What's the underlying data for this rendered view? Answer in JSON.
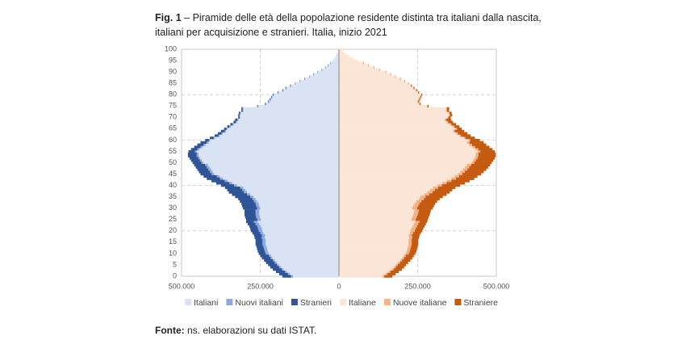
{
  "chart_data": {
    "type": "pyramid",
    "title_label": "Fig. 1",
    "title": "– Piramide delle età della popolazione residente distinta tra italiani dalla nascita, italiani per acquisizione e stranieri. Italia, inizio 2021",
    "source_label": "Fonte:",
    "source": "ns. elaborazioni su dati ISTAT.",
    "y": [
      0,
      1,
      2,
      3,
      4,
      5,
      6,
      7,
      8,
      9,
      10,
      11,
      12,
      13,
      14,
      15,
      16,
      17,
      18,
      19,
      20,
      21,
      22,
      23,
      24,
      25,
      26,
      27,
      28,
      29,
      30,
      31,
      32,
      33,
      34,
      35,
      36,
      37,
      38,
      39,
      40,
      41,
      42,
      43,
      44,
      45,
      46,
      47,
      48,
      49,
      50,
      51,
      52,
      53,
      54,
      55,
      56,
      57,
      58,
      59,
      60,
      61,
      62,
      63,
      64,
      65,
      66,
      67,
      68,
      69,
      70,
      71,
      72,
      73,
      74,
      75,
      76,
      77,
      78,
      79,
      80,
      81,
      82,
      83,
      84,
      85,
      86,
      87,
      88,
      89,
      90,
      91,
      92,
      93,
      94,
      95,
      96,
      97,
      98,
      99,
      100
    ],
    "ylim": [
      0,
      100
    ],
    "yticks": [
      0,
      5,
      10,
      15,
      20,
      25,
      30,
      35,
      40,
      45,
      50,
      55,
      60,
      65,
      70,
      75,
      80,
      85,
      90,
      95,
      100
    ],
    "left_xlim": [
      0,
      500000
    ],
    "right_xlim": [
      0,
      500000
    ],
    "left_xticks": [
      {
        "value": 500000,
        "label": "500.000"
      },
      {
        "value": 250000,
        "label": "250.000"
      },
      0
    ],
    "right_xticks": [
      {
        "value": 250000,
        "label": "250.000"
      },
      {
        "value": 500000,
        "label": "500.000"
      }
    ],
    "grid": true,
    "legend": "bottom",
    "series": [
      {
        "name": "Italiani",
        "side": "left",
        "color": "#dae3f3",
        "values": [
          146000,
          156000,
          166000,
          176000,
          184000,
          191000,
          198000,
          204000,
          211000,
          216000,
          223000,
          226000,
          228000,
          230000,
          233000,
          233000,
          233000,
          236000,
          235000,
          240000,
          243000,
          245000,
          248000,
          253000,
          258000,
          248000,
          251000,
          253000,
          253000,
          253000,
          250000,
          253000,
          255000,
          260000,
          265000,
          272000,
          282000,
          292000,
          297000,
          304000,
          324000,
          339000,
          354000,
          369000,
          379000,
          396000,
          401000,
          406000,
          411000,
          416000,
          431000,
          436000,
          441000,
          446000,
          446000,
          452000,
          444000,
          434000,
          424000,
          414000,
          409000,
          394000,
          379000,
          369000,
          359000,
          354000,
          344000,
          334000,
          324000,
          319000,
          314000,
          314000,
          312000,
          304000,
          304000,
          256000,
          231000,
          221000,
          216000,
          211000,
          207000,
          192000,
          177000,
          167000,
          152000,
          138000,
          123000,
          108000,
          93000,
          80000,
          66000,
          53000,
          42000,
          33000,
          25000,
          20000,
          14000,
          10000,
          7000,
          4000,
          2000
        ]
      },
      {
        "name": "Nuovi italiani",
        "side": "left",
        "color": "#8faadc",
        "values": [
          6000,
          6000,
          6000,
          6000,
          6000,
          6000,
          6000,
          6000,
          6000,
          6000,
          10000,
          10000,
          10000,
          10000,
          10000,
          10000,
          10000,
          10000,
          10000,
          10000,
          12000,
          12000,
          12000,
          12000,
          12000,
          12000,
          12000,
          12000,
          12000,
          12000,
          10000,
          10000,
          10000,
          10000,
          10000,
          10000,
          10000,
          10000,
          10000,
          10000,
          9000,
          9000,
          9000,
          9000,
          9000,
          9000,
          9000,
          9000,
          9000,
          9000,
          6000,
          6000,
          6000,
          6000,
          6000,
          6000,
          6000,
          6000,
          6000,
          6000,
          4000,
          4000,
          4000,
          4000,
          4000,
          4000,
          4000,
          4000,
          4000,
          4000,
          2000,
          2000,
          2000,
          2000,
          2000,
          2000,
          2000,
          2000,
          2000,
          2000,
          1000,
          1000,
          1000,
          1000,
          1000,
          1000,
          1000,
          1000,
          1000,
          1000,
          1000,
          1000,
          1000,
          1000,
          1000,
          0,
          0,
          0,
          0,
          0,
          0
        ]
      },
      {
        "name": "Stranieri",
        "side": "left",
        "color": "#2f5597",
        "values": [
          28000,
          28000,
          28000,
          28000,
          28000,
          28000,
          28000,
          28000,
          28000,
          28000,
          22000,
          22000,
          22000,
          22000,
          22000,
          22000,
          22000,
          22000,
          25000,
          25000,
          25000,
          25000,
          25000,
          25000,
          25000,
          35000,
          35000,
          35000,
          35000,
          35000,
          45000,
          45000,
          45000,
          45000,
          45000,
          48000,
          48000,
          48000,
          48000,
          48000,
          42000,
          42000,
          42000,
          42000,
          42000,
          35000,
          35000,
          35000,
          35000,
          35000,
          28000,
          28000,
          28000,
          28000,
          28000,
          20000,
          20000,
          20000,
          20000,
          20000,
          12000,
          12000,
          12000,
          12000,
          12000,
          7000,
          7000,
          7000,
          7000,
          7000,
          4000,
          4000,
          4000,
          4000,
          4000,
          2000,
          2000,
          2000,
          2000,
          2000,
          2000,
          2000,
          2000,
          2000,
          2000,
          1000,
          1000,
          1000,
          1000,
          1000,
          1000,
          1000,
          1000,
          1000,
          1000,
          0,
          0,
          0,
          0,
          0,
          0
        ]
      },
      {
        "name": "Italiane",
        "side": "right",
        "color": "#fbe5d6",
        "values": [
          138000,
          148000,
          158000,
          168000,
          175000,
          181000,
          188000,
          195000,
          201000,
          206000,
          212000,
          215000,
          217000,
          219000,
          221000,
          221000,
          221000,
          223000,
          222000,
          226000,
          227000,
          230000,
          234000,
          238000,
          242000,
          230000,
          233000,
          236000,
          238000,
          240000,
          232000,
          236000,
          240000,
          246000,
          254000,
          259000,
          271000,
          281000,
          289000,
          299000,
          313000,
          328000,
          343000,
          358000,
          368000,
          378000,
          386000,
          394000,
          400000,
          406000,
          421000,
          426000,
          431000,
          434000,
          434000,
          441000,
          434000,
          424000,
          414000,
          406000,
          413000,
          397000,
          383000,
          373000,
          363000,
          370000,
          362000,
          352000,
          342000,
          336000,
          345000,
          350000,
          348000,
          340000,
          340000,
          279000,
          254000,
          249000,
          252000,
          256000,
          261000,
          251000,
          244000,
          236000,
          228000,
          220000,
          208000,
          194000,
          178000,
          163000,
          148000,
          128000,
          110000,
          93000,
          76000,
          60000,
          45000,
          32000,
          22000,
          14000,
          8000
        ]
      },
      {
        "name": "Nuove italiane",
        "side": "right",
        "color": "#f4b183",
        "values": [
          6000,
          6000,
          6000,
          6000,
          6000,
          6000,
          6000,
          6000,
          6000,
          6000,
          10000,
          10000,
          10000,
          10000,
          10000,
          10000,
          10000,
          10000,
          10000,
          10000,
          14000,
          14000,
          14000,
          14000,
          14000,
          14000,
          14000,
          14000,
          14000,
          14000,
          16000,
          16000,
          16000,
          16000,
          16000,
          16000,
          16000,
          16000,
          16000,
          16000,
          14000,
          14000,
          14000,
          14000,
          14000,
          14000,
          14000,
          14000,
          14000,
          14000,
          9000,
          9000,
          9000,
          9000,
          9000,
          9000,
          9000,
          9000,
          9000,
          9000,
          5000,
          5000,
          5000,
          5000,
          5000,
          5000,
          5000,
          5000,
          5000,
          5000,
          3000,
          3000,
          3000,
          3000,
          3000,
          3000,
          3000,
          3000,
          3000,
          3000,
          1000,
          1000,
          1000,
          1000,
          1000,
          1000,
          1000,
          1000,
          1000,
          1000,
          1000,
          1000,
          1000,
          1000,
          1000,
          0,
          0,
          0,
          0,
          0,
          0
        ]
      },
      {
        "name": "Straniere",
        "side": "right",
        "color": "#c55a11",
        "values": [
          26000,
          26000,
          26000,
          26000,
          26000,
          26000,
          26000,
          26000,
          26000,
          26000,
          21000,
          21000,
          21000,
          21000,
          21000,
          21000,
          21000,
          21000,
          24000,
          24000,
          24000,
          24000,
          24000,
          24000,
          24000,
          38000,
          38000,
          38000,
          38000,
          38000,
          50000,
          50000,
          50000,
          50000,
          50000,
          55000,
          55000,
          55000,
          55000,
          55000,
          58000,
          58000,
          58000,
          58000,
          58000,
          60000,
          60000,
          60000,
          60000,
          60000,
          55000,
          55000,
          55000,
          55000,
          55000,
          45000,
          45000,
          45000,
          45000,
          45000,
          30000,
          30000,
          30000,
          30000,
          30000,
          15000,
          15000,
          15000,
          15000,
          15000,
          7000,
          7000,
          7000,
          7000,
          7000,
          3000,
          3000,
          3000,
          3000,
          3000,
          3000,
          3000,
          3000,
          3000,
          3000,
          1000,
          1000,
          1000,
          1000,
          1000,
          1000,
          1000,
          1000,
          1000,
          1000,
          0,
          0,
          0,
          0,
          0,
          0
        ]
      }
    ]
  }
}
